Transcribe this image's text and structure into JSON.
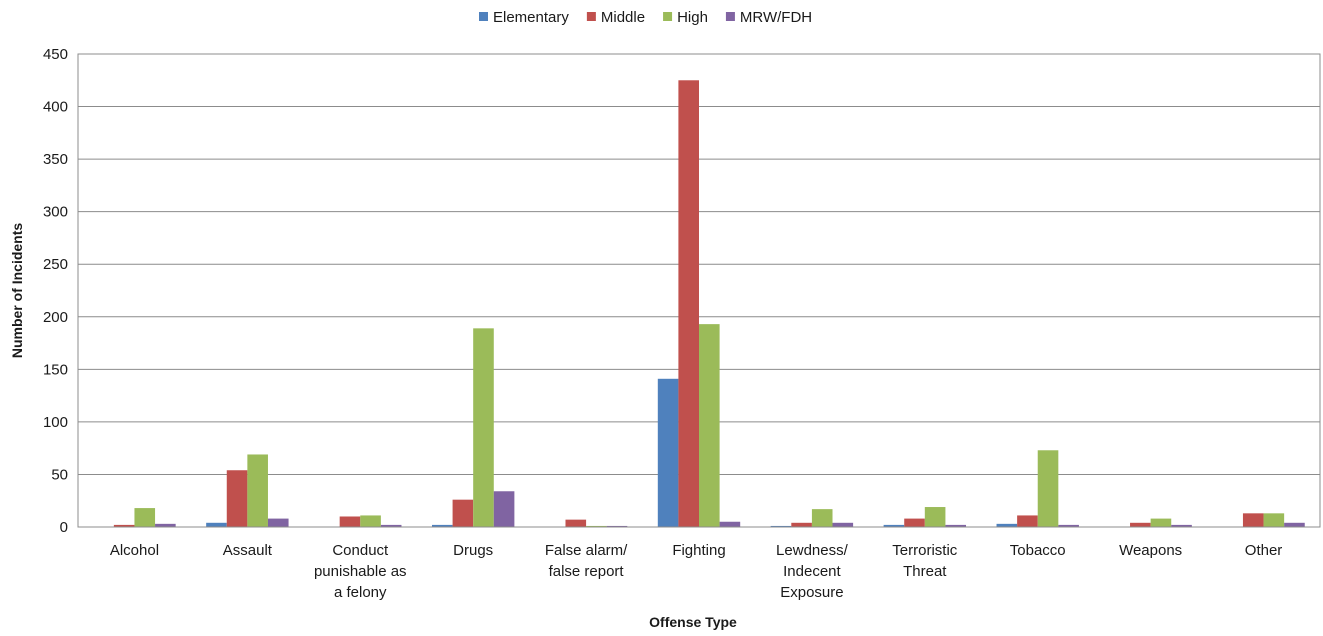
{
  "chart_data": {
    "type": "bar",
    "title": "",
    "xlabel": "Offense Type",
    "ylabel": "Number of Incidents",
    "ylim": [
      0,
      450
    ],
    "yticks": [
      0,
      50,
      100,
      150,
      200,
      250,
      300,
      350,
      400,
      450
    ],
    "grid": true,
    "legend_position": "top-center",
    "categories": [
      [
        "Alcohol"
      ],
      [
        "Assault"
      ],
      [
        "Conduct",
        "punishable as",
        "a felony"
      ],
      [
        "Drugs"
      ],
      [
        "False alarm/",
        "false report"
      ],
      [
        "Fighting"
      ],
      [
        "Lewdness/",
        "Indecent",
        "Exposure"
      ],
      [
        "Terroristic",
        "Threat"
      ],
      [
        "Tobacco"
      ],
      [
        "Weapons"
      ],
      [
        "Other"
      ]
    ],
    "series": [
      {
        "name": "Elementary",
        "color": "#4F81BD",
        "values": [
          0,
          4,
          0,
          2,
          0,
          141,
          1,
          2,
          3,
          0,
          0
        ]
      },
      {
        "name": "Middle",
        "color": "#C0504D",
        "values": [
          2,
          54,
          10,
          26,
          7,
          425,
          4,
          8,
          11,
          4,
          13
        ]
      },
      {
        "name": "High",
        "color": "#9BBB59",
        "values": [
          18,
          69,
          11,
          189,
          1,
          193,
          17,
          19,
          73,
          8,
          13
        ]
      },
      {
        "name": "MRW/FDH",
        "color": "#8064A2",
        "values": [
          3,
          8,
          2,
          34,
          1,
          5,
          4,
          2,
          2,
          2,
          4
        ]
      }
    ]
  }
}
